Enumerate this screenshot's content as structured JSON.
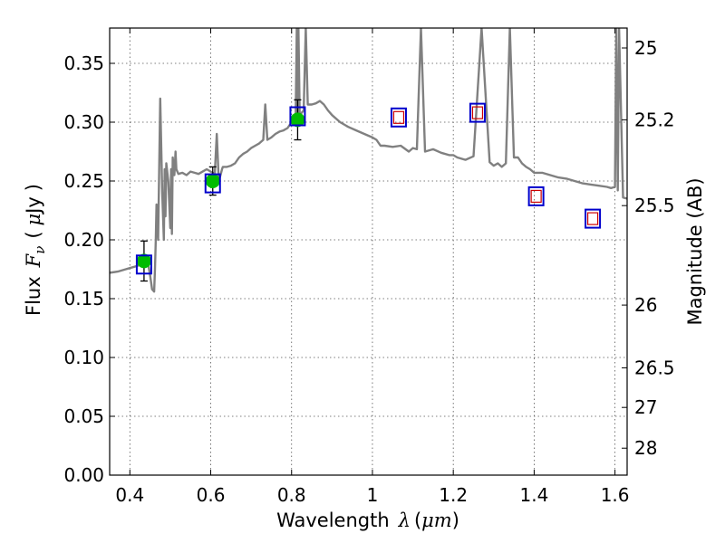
{
  "chart_data": {
    "type": "line",
    "xlabel": "Wavelength",
    "xlabel_symbol": "λ",
    "xlabel_unit": "μm",
    "ylabel": "Flux",
    "ylabel_symbol": "F",
    "ylabel_subscript": "ν",
    "ylabel_unit_prefix": "μ",
    "ylabel_unit": "Jy",
    "y2label": "Magnitude (AB)",
    "xlim": [
      0.35,
      1.63
    ],
    "ylim": [
      0,
      0.38
    ],
    "grid": true,
    "x_ticks": [
      {
        "value": 0.4,
        "label": "0.4"
      },
      {
        "value": 0.6,
        "label": "0.6"
      },
      {
        "value": 0.8,
        "label": "0.8"
      },
      {
        "value": 1.0,
        "label": "1"
      },
      {
        "value": 1.2,
        "label": "1.2"
      },
      {
        "value": 1.4,
        "label": "1.4"
      },
      {
        "value": 1.6,
        "label": "1.6"
      }
    ],
    "y_ticks": [
      {
        "value": 0.0,
        "label": "0.00"
      },
      {
        "value": 0.05,
        "label": "0.05"
      },
      {
        "value": 0.1,
        "label": "0.10"
      },
      {
        "value": 0.15,
        "label": "0.15"
      },
      {
        "value": 0.2,
        "label": "0.20"
      },
      {
        "value": 0.25,
        "label": "0.25"
      },
      {
        "value": 0.3,
        "label": "0.30"
      },
      {
        "value": 0.35,
        "label": "0.35"
      }
    ],
    "y2_ticks": [
      {
        "value": 25.0,
        "label": "25"
      },
      {
        "value": 25.2,
        "label": "25.2"
      },
      {
        "value": 25.5,
        "label": "25.5"
      },
      {
        "value": 26.0,
        "label": "26"
      },
      {
        "value": 26.5,
        "label": "26.5"
      },
      {
        "value": 27.0,
        "label": "27"
      },
      {
        "value": 28.0,
        "label": "28"
      }
    ],
    "colors": {
      "model": "#808080",
      "observed_fill": "#00bb00",
      "model_box": "#0000cc",
      "predicted_box": "#cc0000",
      "errorbar": "#000000",
      "grid": "#555555"
    },
    "model_spectrum": {
      "x": [
        0.35,
        0.37,
        0.39,
        0.4,
        0.42,
        0.43,
        0.44,
        0.445,
        0.45,
        0.455,
        0.46,
        0.462,
        0.464,
        0.466,
        0.47,
        0.475,
        0.48,
        0.484,
        0.486,
        0.488,
        0.49,
        0.495,
        0.5,
        0.502,
        0.504,
        0.506,
        0.51,
        0.513,
        0.515,
        0.52,
        0.53,
        0.54,
        0.55,
        0.56,
        0.57,
        0.58,
        0.59,
        0.6,
        0.61,
        0.615,
        0.62,
        0.625,
        0.628,
        0.63,
        0.64,
        0.65,
        0.66,
        0.67,
        0.68,
        0.69,
        0.7,
        0.71,
        0.72,
        0.73,
        0.735,
        0.74,
        0.75,
        0.76,
        0.77,
        0.78,
        0.79,
        0.8,
        0.81,
        0.813,
        0.815,
        0.817,
        0.82,
        0.83,
        0.835,
        0.84,
        0.85,
        0.86,
        0.87,
        0.88,
        0.89,
        0.9,
        0.92,
        0.94,
        0.96,
        0.98,
        1.0,
        1.01,
        1.02,
        1.03,
        1.05,
        1.07,
        1.09,
        1.1,
        1.11,
        1.12,
        1.13,
        1.15,
        1.17,
        1.19,
        1.2,
        1.21,
        1.23,
        1.25,
        1.27,
        1.29,
        1.3,
        1.31,
        1.32,
        1.33,
        1.34,
        1.35,
        1.36,
        1.37,
        1.38,
        1.39,
        1.4,
        1.42,
        1.44,
        1.46,
        1.48,
        1.5,
        1.52,
        1.54,
        1.56,
        1.58,
        1.59,
        1.6,
        1.603,
        1.607,
        1.61,
        1.62,
        1.63
      ],
      "y": [
        0.172,
        0.173,
        0.175,
        0.176,
        0.178,
        0.18,
        0.185,
        0.18,
        0.17,
        0.158,
        0.156,
        0.175,
        0.2,
        0.23,
        0.2,
        0.32,
        0.24,
        0.2,
        0.26,
        0.22,
        0.265,
        0.25,
        0.21,
        0.26,
        0.205,
        0.27,
        0.255,
        0.275,
        0.26,
        0.256,
        0.257,
        0.255,
        0.258,
        0.257,
        0.256,
        0.258,
        0.26,
        0.258,
        0.256,
        0.29,
        0.25,
        0.256,
        0.26,
        0.262,
        0.262,
        0.263,
        0.265,
        0.27,
        0.273,
        0.275,
        0.278,
        0.28,
        0.282,
        0.285,
        0.315,
        0.285,
        0.287,
        0.29,
        0.292,
        0.293,
        0.295,
        0.3,
        0.301,
        0.38,
        0.3,
        0.38,
        0.306,
        0.31,
        0.38,
        0.315,
        0.315,
        0.316,
        0.318,
        0.315,
        0.31,
        0.306,
        0.3,
        0.296,
        0.293,
        0.29,
        0.287,
        0.285,
        0.28,
        0.28,
        0.279,
        0.28,
        0.275,
        0.278,
        0.277,
        0.38,
        0.275,
        0.277,
        0.274,
        0.272,
        0.272,
        0.27,
        0.268,
        0.271,
        0.38,
        0.266,
        0.263,
        0.265,
        0.262,
        0.265,
        0.38,
        0.27,
        0.27,
        0.265,
        0.262,
        0.26,
        0.257,
        0.257,
        0.255,
        0.253,
        0.252,
        0.25,
        0.248,
        0.247,
        0.246,
        0.245,
        0.244,
        0.245,
        0.38,
        0.242,
        0.38,
        0.236,
        0.235
      ]
    },
    "series": [
      {
        "name": "",
        "kind": "observed",
        "x": [
          0.435,
          0.605,
          0.815
        ],
        "y": [
          0.182,
          0.25,
          0.302
        ],
        "yerr": [
          0.017,
          0.012,
          0.017
        ]
      },
      {
        "name": "",
        "kind": "model_photometry",
        "x": [
          0.435,
          0.605,
          0.815,
          1.065,
          1.26,
          1.405,
          1.545
        ],
        "y": [
          0.179,
          0.248,
          0.305,
          0.304,
          0.308,
          0.237,
          0.218
        ]
      },
      {
        "name": "",
        "kind": "predicted",
        "x": [
          1.065,
          1.26,
          1.405,
          1.545
        ],
        "y": [
          0.304,
          0.308,
          0.237,
          0.218
        ]
      }
    ]
  }
}
